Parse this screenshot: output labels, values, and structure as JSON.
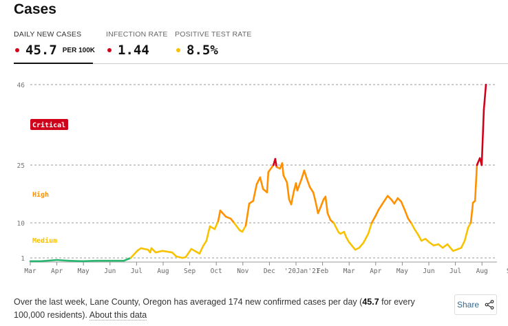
{
  "title": "Cases",
  "tabs": [
    {
      "label": "DAILY NEW CASES",
      "value": "45.7",
      "unit": "PER 100K",
      "dot_color": "#d0021b"
    },
    {
      "label": "INFECTION RATE",
      "value": "1.44",
      "dot_color": "#d0021b"
    },
    {
      "label": "POSITIVE TEST RATE",
      "value": "8.5%",
      "dot_color": "#f8c200"
    }
  ],
  "colors": {
    "low": "#27b56e",
    "medium": "#f8c200",
    "high": "#ff9000",
    "critical": "#d0021b"
  },
  "chart_data": {
    "type": "line",
    "title": "",
    "ylabel": "",
    "xlabel": "",
    "yticks": [
      1,
      10,
      25,
      46
    ],
    "ylim": [
      0,
      46
    ],
    "grid": true,
    "xticks": [
      "Mar",
      "Apr",
      "May",
      "Jun",
      "Jul",
      "Aug",
      "Sep",
      "Oct",
      "Nov",
      "Dec",
      "'20Jan",
      "'21",
      "Feb",
      "Mar",
      "Apr",
      "May",
      "Jun",
      "Jul",
      "Aug",
      "S"
    ],
    "xtick_months": [
      0,
      1,
      2,
      3,
      4,
      5,
      6,
      7,
      8,
      9,
      10,
      10.45,
      11,
      12,
      13,
      14,
      15,
      16,
      17,
      18
    ],
    "bands": [
      {
        "label": "Critical",
        "min": 25
      },
      {
        "label": "High",
        "min": 10
      },
      {
        "label": "Medium",
        "min": 1
      }
    ],
    "points": [
      [
        0,
        0.2
      ],
      [
        0.41,
        0.2
      ],
      [
        1.01,
        0.5
      ],
      [
        1.45,
        0.3
      ],
      [
        1.97,
        0.2
      ],
      [
        2.49,
        0.3
      ],
      [
        3.01,
        0.3
      ],
      [
        3.52,
        0.3
      ],
      [
        3.78,
        1.0
      ],
      [
        4.04,
        2.9
      ],
      [
        4.17,
        3.5
      ],
      [
        4.43,
        3.1
      ],
      [
        4.51,
        2.4
      ],
      [
        4.56,
        3.5
      ],
      [
        4.72,
        2.4
      ],
      [
        4.97,
        2.8
      ],
      [
        5.34,
        2.4
      ],
      [
        5.49,
        1.4
      ],
      [
        5.73,
        1.0
      ],
      [
        5.85,
        1.2
      ],
      [
        6.06,
        3.3
      ],
      [
        6.24,
        2.6
      ],
      [
        6.37,
        2.1
      ],
      [
        6.5,
        4.0
      ],
      [
        6.63,
        5.4
      ],
      [
        6.76,
        9.1
      ],
      [
        6.94,
        8.4
      ],
      [
        7.07,
        10.4
      ],
      [
        7.15,
        13.2
      ],
      [
        7.36,
        11.6
      ],
      [
        7.54,
        11.1
      ],
      [
        7.67,
        10.0
      ],
      [
        7.88,
        8.1
      ],
      [
        7.98,
        7.7
      ],
      [
        8.11,
        9.3
      ],
      [
        8.24,
        15.0
      ],
      [
        8.39,
        15.7
      ],
      [
        8.52,
        20.0
      ],
      [
        8.65,
        21.8
      ],
      [
        8.76,
        18.8
      ],
      [
        8.91,
        17.9
      ],
      [
        8.96,
        23.2
      ],
      [
        9.15,
        25.0
      ],
      [
        9.22,
        26.6
      ],
      [
        9.27,
        24.5
      ],
      [
        9.4,
        24.1
      ],
      [
        9.48,
        25.5
      ],
      [
        9.53,
        22.3
      ],
      [
        9.66,
        20.5
      ],
      [
        9.74,
        16.1
      ],
      [
        9.82,
        14.8
      ],
      [
        9.92,
        18.2
      ],
      [
        10.0,
        20.3
      ],
      [
        10.05,
        18.4
      ],
      [
        10.21,
        21.4
      ],
      [
        10.31,
        23.6
      ],
      [
        10.41,
        21.4
      ],
      [
        10.52,
        19.3
      ],
      [
        10.65,
        17.9
      ],
      [
        10.73,
        15.7
      ],
      [
        10.83,
        12.5
      ],
      [
        10.91,
        13.8
      ],
      [
        11.04,
        16.1
      ],
      [
        11.11,
        16.8
      ],
      [
        11.19,
        12.5
      ],
      [
        11.3,
        10.7
      ],
      [
        11.42,
        10.0
      ],
      [
        11.5,
        8.9
      ],
      [
        11.61,
        7.5
      ],
      [
        11.68,
        7.2
      ],
      [
        11.81,
        7.7
      ],
      [
        11.89,
        6.3
      ],
      [
        11.99,
        5.1
      ],
      [
        12.12,
        4.0
      ],
      [
        12.23,
        3.1
      ],
      [
        12.38,
        3.6
      ],
      [
        12.54,
        4.9
      ],
      [
        12.72,
        7.2
      ],
      [
        12.85,
        10.0
      ],
      [
        12.98,
        11.6
      ],
      [
        13.11,
        13.4
      ],
      [
        13.24,
        14.8
      ],
      [
        13.45,
        17.0
      ],
      [
        13.58,
        16.1
      ],
      [
        13.7,
        15.0
      ],
      [
        13.83,
        16.4
      ],
      [
        13.96,
        15.5
      ],
      [
        14.09,
        13.4
      ],
      [
        14.22,
        11.1
      ],
      [
        14.35,
        9.8
      ],
      [
        14.46,
        8.4
      ],
      [
        14.61,
        6.8
      ],
      [
        14.72,
        5.4
      ],
      [
        14.87,
        5.9
      ],
      [
        15.0,
        5.1
      ],
      [
        15.18,
        4.2
      ],
      [
        15.36,
        4.5
      ],
      [
        15.52,
        3.6
      ],
      [
        15.7,
        4.5
      ],
      [
        15.91,
        2.8
      ],
      [
        16.04,
        3.1
      ],
      [
        16.22,
        3.6
      ],
      [
        16.35,
        5.4
      ],
      [
        16.48,
        8.8
      ],
      [
        16.58,
        10.0
      ],
      [
        16.66,
        15.2
      ],
      [
        16.74,
        15.7
      ],
      [
        16.81,
        25.0
      ],
      [
        16.92,
        26.8
      ],
      [
        16.99,
        25.0
      ],
      [
        17.07,
        39.4
      ],
      [
        17.15,
        46.0
      ]
    ]
  },
  "caption": {
    "before": "Over the last week, Lane County, Oregon has averaged 174 new confirmed cases per day (",
    "bold": "45.7",
    "after": " for every 100,000 residents). ",
    "link": "About this data"
  },
  "share_label": "Share"
}
